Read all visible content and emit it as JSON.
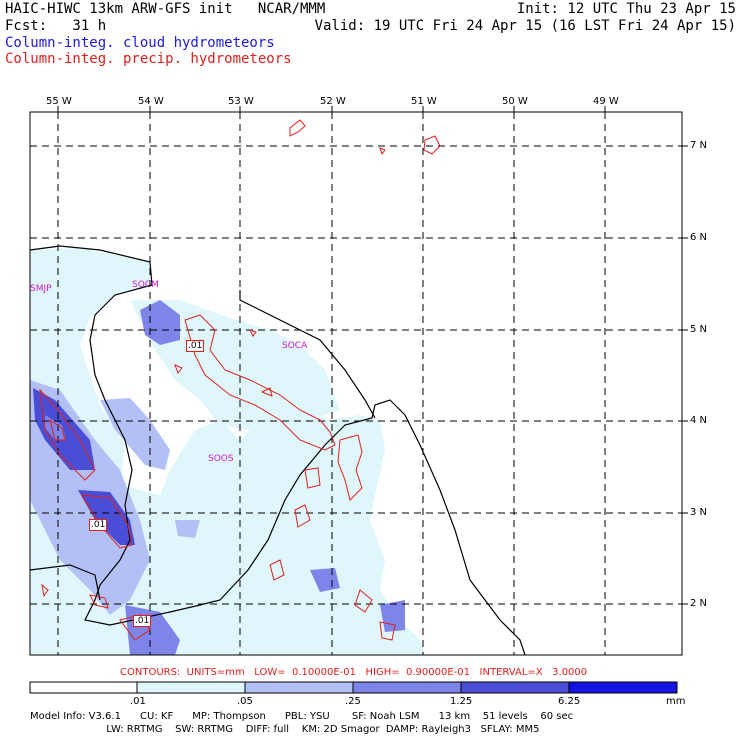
{
  "header": {
    "line1_left": "HAIC-HIWC 13km ARW-GFS init   NCAR/MMM",
    "line1_right": "Init: 12 UTC Thu 23 Apr 15",
    "line2_left": "Fcst:   31 h",
    "line2_right": "Valid: 19 UTC Fri 24 Apr 15 (16 LST Fri 24 Apr 15)",
    "line3": "Column-integ. cloud hydrometeors",
    "line4": "Column-integ. precip. hydrometeors"
  },
  "colors": {
    "cloud_title": "#1a1adc",
    "precip_title": "#e0201c",
    "shade_1": "#dff6fb",
    "shade_2": "#b3c0f5",
    "shade_3": "#7d86e8",
    "shade_4": "#4a4ed6",
    "shade_5": "#1414e0",
    "contour": "#e0201c",
    "station": "#d01ad0"
  },
  "map": {
    "lon_ticks": [
      "55 W",
      "54 W",
      "53 W",
      "52 W",
      "51 W",
      "50 W",
      "49 W"
    ],
    "lat_ticks": [
      "7 N",
      "6 N",
      "5 N",
      "4 N",
      "3 N",
      "2 N"
    ],
    "stations": [
      "SMJP",
      "SOCM",
      "SOCA",
      "SOOS"
    ],
    "contour_labels": [
      ".01",
      ".01",
      ".01"
    ]
  },
  "contours_line": "CONTOURS:  UNITS=mm   LOW=  0.10000E-01   HIGH=  0.90000E-01   INTERVAL=X   3.0000",
  "colorbar": {
    "levels": [
      ".01",
      ".05",
      ".25",
      "1.25",
      "6.25"
    ],
    "units": "mm"
  },
  "model_info": {
    "line1": "Model Info: V3.6.1      CU: KF      MP: Thompson      PBL: YSU       SF: Noah LSM      13 km    51 levels    60 sec",
    "line2": "                        LW: RRTMG    SW: RRTMG    DIFF: full    KM: 2D Smagor  DAMP: Rayleigh3   SFLAY: MM5"
  }
}
